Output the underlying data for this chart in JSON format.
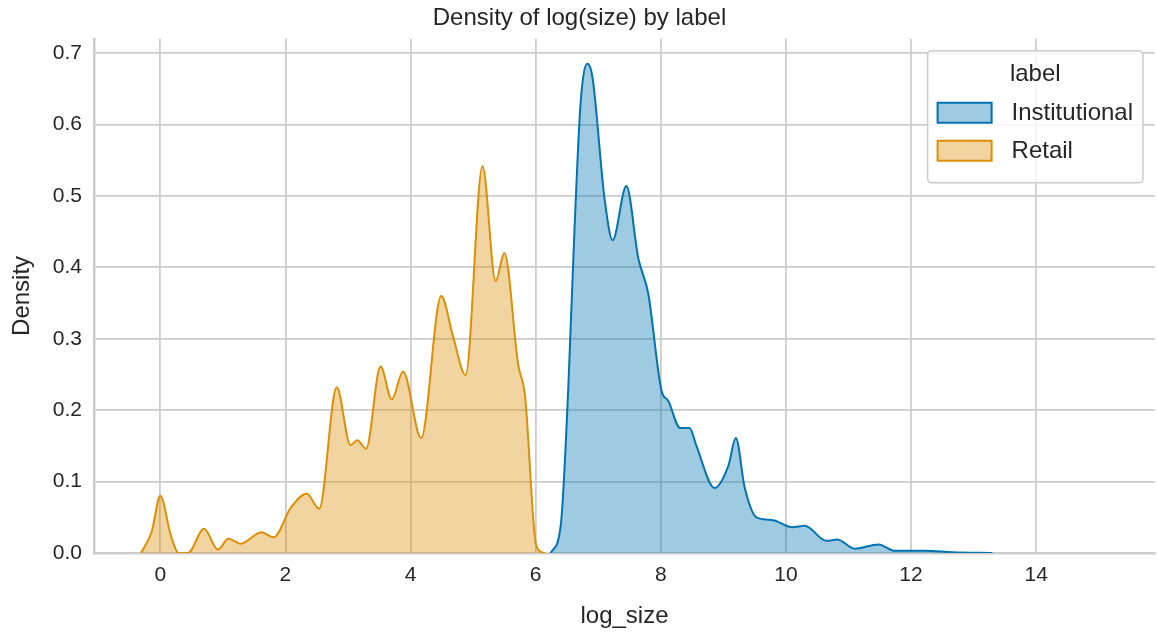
{
  "chart_data": {
    "type": "area",
    "title": "Density of log(size) by label",
    "xlabel": "log_size",
    "ylabel": "Density",
    "legend_title": "label",
    "legend": "top right",
    "grid": true,
    "xlim": [
      -1.06,
      15.9
    ],
    "ylim": [
      0,
      0.72
    ],
    "xticks": [
      0,
      2,
      4,
      6,
      8,
      10,
      12,
      14
    ],
    "yticks": [
      {
        "value": 0,
        "label": "0.0"
      },
      {
        "value": 0.1,
        "label": "0.1"
      },
      {
        "value": 0.2,
        "label": "0.2"
      },
      {
        "value": 0.3,
        "label": "0.3"
      },
      {
        "value": 0.4,
        "label": "0.4"
      },
      {
        "value": 0.5,
        "label": "0.5"
      },
      {
        "value": 0.6,
        "label": "0.6"
      },
      {
        "value": 0.7,
        "label": "0.7"
      }
    ],
    "series": [
      {
        "name": "Institutional",
        "color": "#0173b2",
        "x": [
          6.24,
          6.4,
          6.52,
          6.62,
          6.72,
          6.83,
          6.91,
          7.1,
          7.23,
          7.45,
          7.64,
          7.8,
          8.01,
          8.12,
          8.31,
          8.46,
          8.57,
          8.86,
          9.08,
          9.2,
          9.34,
          9.53,
          9.79,
          10.1,
          10.3,
          10.65,
          10.82,
          11.1,
          11.48,
          11.74,
          12.22,
          12.66,
          13.3
        ],
        "values": [
          0,
          0.038,
          0.228,
          0.452,
          0.632,
          0.685,
          0.665,
          0.497,
          0.438,
          0.514,
          0.413,
          0.363,
          0.228,
          0.213,
          0.175,
          0.175,
          0.15,
          0.091,
          0.122,
          0.161,
          0.092,
          0.05,
          0.046,
          0.036,
          0.038,
          0.017,
          0.019,
          0.006,
          0.012,
          0.003,
          0.003,
          0.001,
          0
        ]
      },
      {
        "name": "Retail",
        "color": "#de8f05",
        "x": [
          -0.31,
          -0.14,
          0,
          0.17,
          0.29,
          0.44,
          0.7,
          0.92,
          1.09,
          1.28,
          1.62,
          1.81,
          2.09,
          2.34,
          2.54,
          2.82,
          3.04,
          3.15,
          3.29,
          3.52,
          3.7,
          3.88,
          4.17,
          4.49,
          4.68,
          4.88,
          5.15,
          5.36,
          5.5,
          5.72,
          5.83,
          6.01,
          6.15
        ],
        "values": [
          0,
          0.029,
          0.08,
          0.024,
          0,
          0,
          0.034,
          0.005,
          0.02,
          0.013,
          0.029,
          0.022,
          0.064,
          0.083,
          0.062,
          0.232,
          0.151,
          0.158,
          0.146,
          0.261,
          0.215,
          0.254,
          0.161,
          0.36,
          0.303,
          0.249,
          0.542,
          0.381,
          0.42,
          0.264,
          0.22,
          0.01,
          0
        ]
      }
    ]
  }
}
